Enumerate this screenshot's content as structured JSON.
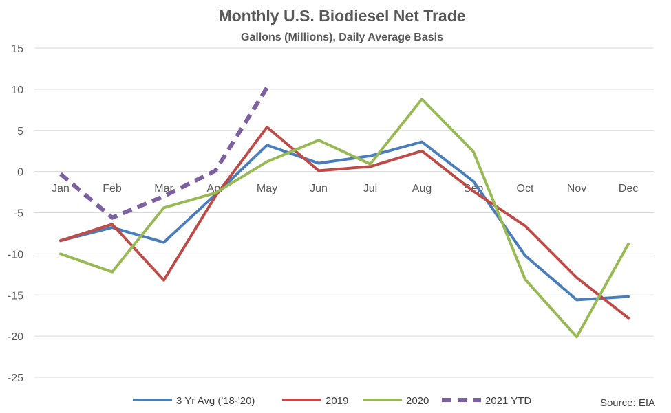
{
  "chart_data": {
    "type": "line",
    "title": "Monthly U.S. Biodiesel Net Trade",
    "subtitle": "Gallons (Millions), Daily Average Basis",
    "categories": [
      "Jan",
      "Feb",
      "Mar",
      "Apr",
      "May",
      "Jun",
      "Jul",
      "Aug",
      "Sep",
      "Oct",
      "Nov",
      "Dec"
    ],
    "ylim": [
      -25,
      15
    ],
    "yticks": [
      15,
      10,
      5,
      0,
      -5,
      -10,
      -15,
      -20,
      -25
    ],
    "grid": true,
    "legend_position": "bottom",
    "source": "Source: EIA",
    "series": [
      {
        "name": "3 Yr Avg ('18-'20)",
        "color": "#4a7ebb",
        "dashed": false,
        "values": [
          -8.4,
          -6.8,
          -8.6,
          -2.8,
          3.2,
          1.0,
          1.9,
          3.6,
          -1.2,
          -10.2,
          -15.6,
          -15.2
        ]
      },
      {
        "name": "2019",
        "color": "#be4b48",
        "dashed": false,
        "values": [
          -8.4,
          -6.4,
          -13.2,
          -3.0,
          5.4,
          0.1,
          0.6,
          2.5,
          -2.4,
          -6.6,
          -12.9,
          -17.8
        ]
      },
      {
        "name": "2020",
        "color": "#98b954",
        "dashed": false,
        "values": [
          -10.0,
          -12.2,
          -4.4,
          -2.6,
          1.2,
          3.8,
          0.9,
          8.8,
          2.4,
          -13.1,
          -20.1,
          -8.8
        ]
      },
      {
        "name": "2021 YTD",
        "color": "#7d60a0",
        "dashed": true,
        "values": [
          -0.3,
          -5.6,
          -3.0,
          0.1,
          10.2,
          null,
          null,
          null,
          null,
          null,
          null,
          null
        ]
      }
    ]
  }
}
